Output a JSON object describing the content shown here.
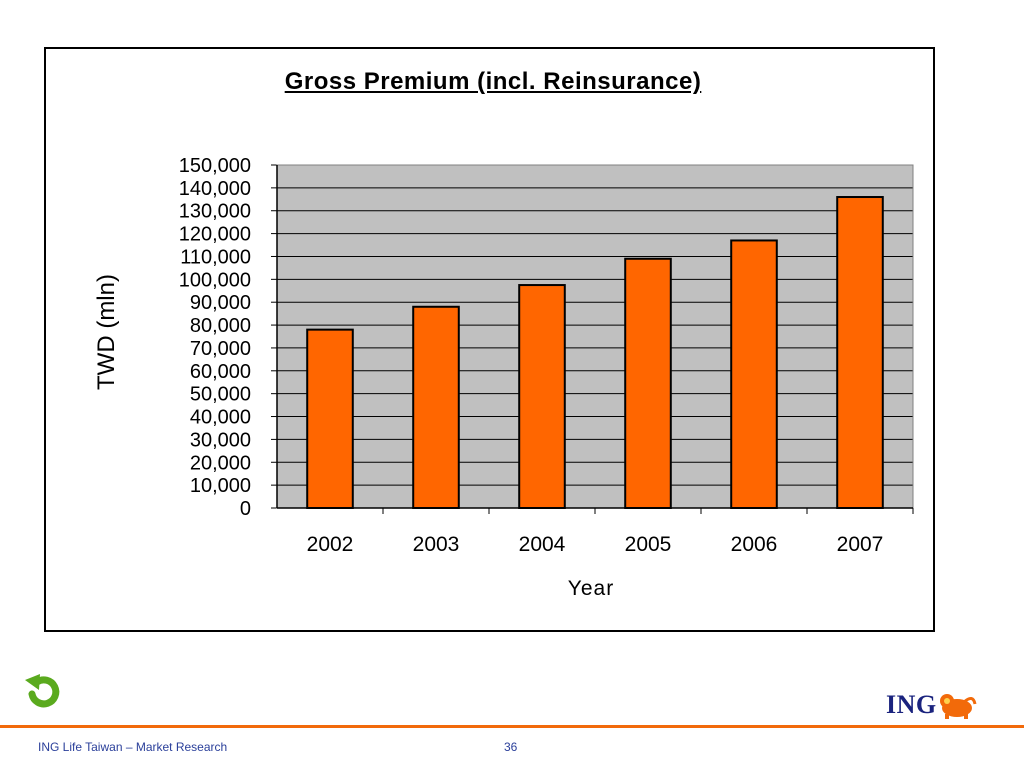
{
  "chart_data": {
    "type": "bar",
    "title": "Gross Premium (incl. Reinsurance)",
    "xlabel": "Year",
    "ylabel": "TWD (mln)",
    "categories": [
      "2002",
      "2003",
      "2004",
      "2005",
      "2006",
      "2007"
    ],
    "values": [
      78000,
      88000,
      97500,
      109000,
      117000,
      136000
    ],
    "ylim": [
      0,
      150000
    ],
    "ytick_step": 10000,
    "yticks": [
      "0",
      "10,000",
      "20,000",
      "30,000",
      "40,000",
      "50,000",
      "60,000",
      "70,000",
      "80,000",
      "90,000",
      "100,000",
      "110,000",
      "120,000",
      "130,000",
      "140,000",
      "150,000"
    ],
    "grid": true,
    "legend": "none",
    "colors": {
      "bar": "#ff6600",
      "plot_bg": "#c0c0c0",
      "grid": "#000000"
    }
  },
  "footer": {
    "left_text": "ING Life Taiwan – Market Research",
    "page_number": "36",
    "logo_text": "ING",
    "logo_icon": "lion-icon",
    "back_icon": "back-arrow-icon"
  },
  "colors": {
    "accent": "#f26a0a",
    "footer_text": "#2a3f9a",
    "logo": "#1a237e",
    "back_arrow": "#5aaa1e"
  }
}
